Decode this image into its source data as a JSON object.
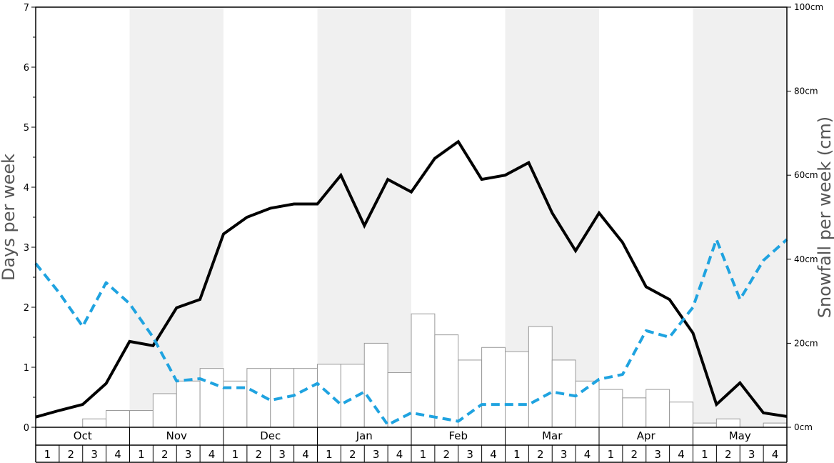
{
  "chart_data": {
    "type": "bar+line",
    "months": [
      "Oct",
      "Nov",
      "Dec",
      "Jan",
      "Feb",
      "Mar",
      "Apr",
      "May"
    ],
    "weeks_per_month": [
      "1",
      "2",
      "3",
      "4"
    ],
    "left_axis": {
      "title": "Days per week",
      "ylim": [
        0,
        7
      ],
      "ticks": [
        "0",
        "1",
        "2",
        "3",
        "4",
        "5",
        "6",
        "7"
      ]
    },
    "right_axis": {
      "title": "Snowfall per week (cm)",
      "ylim": [
        0,
        100
      ],
      "ticks": [
        "0cm",
        "20cm",
        "40cm",
        "60cm",
        "80cm",
        "100cm"
      ]
    },
    "series": [
      {
        "type": "bar",
        "axis": "right",
        "unit": "cm",
        "values": [
          0,
          0,
          2,
          4,
          4,
          8,
          11,
          14,
          11,
          14,
          14,
          14,
          15,
          15,
          20,
          13,
          27,
          22,
          16,
          19,
          18,
          24,
          16,
          11,
          9,
          7,
          9,
          6,
          1,
          2,
          0,
          1
        ]
      },
      {
        "type": "line",
        "axis": "left",
        "style": "solid",
        "color": "#000000",
        "values": [
          0.17,
          0.28,
          0.38,
          0.73,
          1.43,
          1.36,
          1.99,
          2.13,
          3.22,
          3.5,
          3.65,
          3.72,
          3.72,
          4.2,
          3.36,
          4.13,
          3.92,
          4.48,
          4.76,
          4.13,
          4.2,
          4.41,
          3.57,
          2.94,
          3.57,
          3.08,
          2.34,
          2.13,
          1.57,
          0.38,
          0.74,
          0.24,
          0.18
        ]
      },
      {
        "type": "line",
        "axis": "left",
        "style": "dashed",
        "color": "#1fa3e0",
        "values": [
          2.73,
          2.24,
          1.68,
          2.41,
          2.06,
          1.5,
          0.77,
          0.81,
          0.66,
          0.66,
          0.45,
          0.53,
          0.73,
          0.38,
          0.59,
          0.04,
          0.24,
          0.17,
          0.1,
          0.38,
          0.38,
          0.38,
          0.59,
          0.52,
          0.8,
          0.88,
          1.61,
          1.5,
          2.0,
          3.13,
          2.13,
          2.78,
          3.13
        ]
      }
    ],
    "grid": false,
    "shading": "alternating months (Nov, Jan, Mar, May shaded)"
  }
}
